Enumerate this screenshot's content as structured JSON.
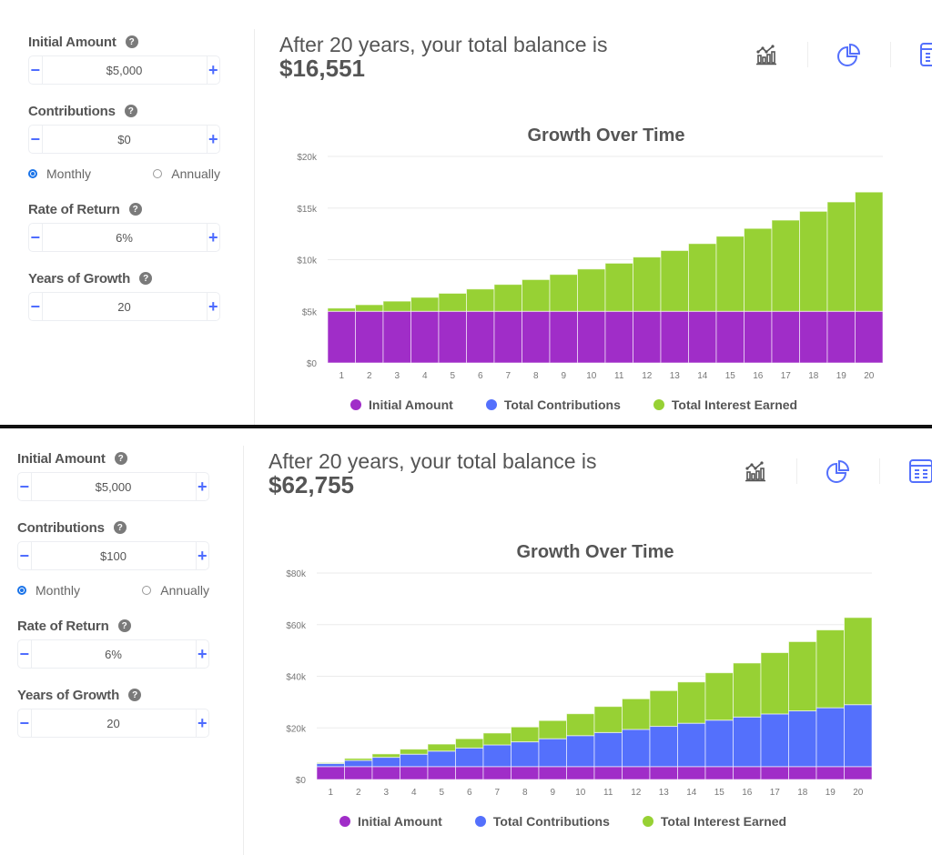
{
  "colors": {
    "initial": "#a02dc8",
    "contributions": "#5470fc",
    "interest": "#97d134",
    "accent": "#4d6bfe",
    "grid": "#ebebeb",
    "text": "#555555"
  },
  "panels": [
    {
      "form": {
        "initial_amount": {
          "label": "Initial Amount",
          "value": "$5,000"
        },
        "contributions": {
          "label": "Contributions",
          "value": "$0"
        },
        "frequency": {
          "monthly": "Monthly",
          "annually": "Annually",
          "selected": "Monthly"
        },
        "rate_of_return": {
          "label": "Rate of Return",
          "value": "6%"
        },
        "years_of_growth": {
          "label": "Years of Growth",
          "value": "20"
        },
        "minus": "−",
        "plus": "+",
        "help": "?"
      },
      "summary": {
        "text": "After 20 years, your total balance is",
        "amount": "$16,551"
      },
      "view_icons": [
        "bar-chart-icon",
        "pie-chart-icon",
        "table-icon"
      ],
      "legend": [
        "Initial Amount",
        "Total Contributions",
        "Total Interest Earned"
      ]
    },
    {
      "form": {
        "initial_amount": {
          "label": "Initial Amount",
          "value": "$5,000"
        },
        "contributions": {
          "label": "Contributions",
          "value": "$100"
        },
        "frequency": {
          "monthly": "Monthly",
          "annually": "Annually",
          "selected": "Monthly"
        },
        "rate_of_return": {
          "label": "Rate of Return",
          "value": "6%"
        },
        "years_of_growth": {
          "label": "Years of Growth",
          "value": "20"
        },
        "minus": "−",
        "plus": "+",
        "help": "?"
      },
      "summary": {
        "text": "After 20 years, your total balance is",
        "amount": "$62,755"
      },
      "view_icons": [
        "bar-chart-icon",
        "pie-chart-icon",
        "table-icon"
      ],
      "legend": [
        "Initial Amount",
        "Total Contributions",
        "Total Interest Earned"
      ]
    }
  ],
  "chart_data": [
    {
      "type": "bar",
      "stacked": true,
      "title": "Growth Over Time",
      "xlabel": "",
      "ylabel": "",
      "categories": [
        "1",
        "2",
        "3",
        "4",
        "5",
        "6",
        "7",
        "8",
        "9",
        "10",
        "11",
        "12",
        "13",
        "14",
        "15",
        "16",
        "17",
        "18",
        "19",
        "20"
      ],
      "ylim": [
        0,
        20000
      ],
      "yticks": [
        0,
        5000,
        10000,
        15000,
        20000
      ],
      "ytick_labels": [
        "$0",
        "$5k",
        "$10k",
        "$15k",
        "$20k"
      ],
      "grid": true,
      "legend_position": "bottom",
      "series": [
        {
          "name": "Initial Amount",
          "values": [
            5000,
            5000,
            5000,
            5000,
            5000,
            5000,
            5000,
            5000,
            5000,
            5000,
            5000,
            5000,
            5000,
            5000,
            5000,
            5000,
            5000,
            5000,
            5000,
            5000
          ]
        },
        {
          "name": "Total Contributions",
          "values": [
            0,
            0,
            0,
            0,
            0,
            0,
            0,
            0,
            0,
            0,
            0,
            0,
            0,
            0,
            0,
            0,
            0,
            0,
            0,
            0
          ]
        },
        {
          "name": "Total Interest Earned",
          "values": [
            308,
            636,
            983,
            1352,
            1744,
            2160,
            2602,
            3071,
            3569,
            4097,
            4658,
            5254,
            5886,
            6558,
            7270,
            8027,
            8831,
            9684,
            10590,
            11551
          ]
        }
      ]
    },
    {
      "type": "bar",
      "stacked": true,
      "title": "Growth Over Time",
      "xlabel": "",
      "ylabel": "",
      "categories": [
        "1",
        "2",
        "3",
        "4",
        "5",
        "6",
        "7",
        "8",
        "9",
        "10",
        "11",
        "12",
        "13",
        "14",
        "15",
        "16",
        "17",
        "18",
        "19",
        "20"
      ],
      "ylim": [
        0,
        80000
      ],
      "yticks": [
        0,
        20000,
        40000,
        60000,
        80000
      ],
      "ytick_labels": [
        "$0",
        "$20k",
        "$40k",
        "$60k",
        "$80k"
      ],
      "grid": true,
      "legend_position": "bottom",
      "series": [
        {
          "name": "Initial Amount",
          "values": [
            5000,
            5000,
            5000,
            5000,
            5000,
            5000,
            5000,
            5000,
            5000,
            5000,
            5000,
            5000,
            5000,
            5000,
            5000,
            5000,
            5000,
            5000,
            5000,
            5000
          ]
        },
        {
          "name": "Total Contributions",
          "values": [
            1200,
            2400,
            3600,
            4800,
            6000,
            7200,
            8400,
            9600,
            10800,
            12000,
            13200,
            14400,
            15600,
            16800,
            18000,
            19200,
            20400,
            21600,
            22800,
            24000
          ]
        },
        {
          "name": "Total Interest Earned",
          "values": [
            342,
            779,
            1317,
            1962,
            2721,
            3601,
            4609,
            5754,
            7043,
            8485,
            10090,
            11869,
            13831,
            15989,
            18352,
            20936,
            23754,
            26819,
            30148,
            33755
          ]
        }
      ]
    }
  ]
}
